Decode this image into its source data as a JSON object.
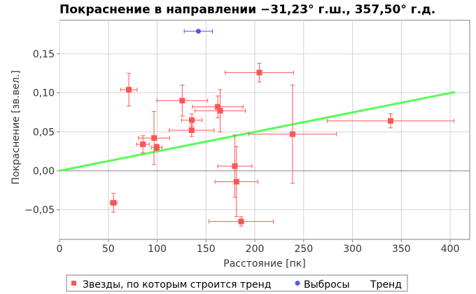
{
  "chart_data": {
    "type": "scatter",
    "title": "Покраснение в направлении −31,23° г.ш., 357,50° г.д.",
    "xlabel": "Расстояние [пк]",
    "ylabel": "Покраснение [зв.вел.]",
    "xlim": [
      0,
      420
    ],
    "ylim": [
      -0.088,
      0.193
    ],
    "x_ticks": [
      {
        "value": 0,
        "label": "0"
      },
      {
        "value": 50,
        "label": "50"
      },
      {
        "value": 100,
        "label": "100"
      },
      {
        "value": 150,
        "label": "150"
      },
      {
        "value": 200,
        "label": "200"
      },
      {
        "value": 250,
        "label": "250"
      },
      {
        "value": 300,
        "label": "300"
      },
      {
        "value": 350,
        "label": "350"
      },
      {
        "value": 400,
        "label": "400"
      }
    ],
    "y_ticks": [
      {
        "value": -0.05,
        "label": "−0,05"
      },
      {
        "value": 0.0,
        "label": "0,00"
      },
      {
        "value": 0.05,
        "label": "0,05"
      },
      {
        "value": 0.1,
        "label": "0,10"
      },
      {
        "value": 0.15,
        "label": "0,15"
      }
    ],
    "grid": true,
    "legend_position": "bottom",
    "colors": {
      "trend_stars": "#ff5555",
      "outliers": "#5555ff",
      "trend_line": "#55ff55",
      "zero_line": "#808080",
      "grid": "#d3d3d3"
    },
    "series": [
      {
        "name": "Звезды, по которым строится тренд",
        "color": "#ff5555",
        "marker": "square",
        "points": [
          {
            "x": 55.3,
            "y": -0.041,
            "xerr": 3.5,
            "yerr": 0.012
          },
          {
            "x": 71.0,
            "y": 0.104,
            "xerr": 8.5,
            "yerr": 0.021
          },
          {
            "x": 85.4,
            "y": 0.034,
            "xerr": 6.5,
            "yerr": 0.011
          },
          {
            "x": 96.8,
            "y": 0.042,
            "xerr": 16.0,
            "yerr": 0.034
          },
          {
            "x": 99.5,
            "y": 0.03,
            "xerr": 5.5,
            "yerr": 0.004
          },
          {
            "x": 125.7,
            "y": 0.09,
            "xerr": 26.0,
            "yerr": 0.02
          },
          {
            "x": 135.5,
            "y": 0.065,
            "xerr": 10.5,
            "yerr": 0.008
          },
          {
            "x": 135.3,
            "y": 0.052,
            "xerr": 23.0,
            "yerr": 0.008
          },
          {
            "x": 162.0,
            "y": 0.082,
            "xerr": 26.0,
            "yerr": 0.014
          },
          {
            "x": 164.5,
            "y": 0.077,
            "xerr": 26.0,
            "yerr": 0.027
          },
          {
            "x": 204.6,
            "y": 0.126,
            "xerr": 35.0,
            "yerr": 0.012
          },
          {
            "x": 179.5,
            "y": 0.006,
            "xerr": 17.5,
            "yerr": 0.04
          },
          {
            "x": 181.2,
            "y": -0.014,
            "xerr": 22.0,
            "yerr": 0.045
          },
          {
            "x": 186.0,
            "y": -0.065,
            "xerr": 33.0,
            "yerr": 0.006
          },
          {
            "x": 238.6,
            "y": 0.047,
            "xerr": 45.0,
            "yerr": 0.063
          },
          {
            "x": 339.0,
            "y": 0.064,
            "xerr": 65.0,
            "yerr": 0.009
          }
        ]
      },
      {
        "name": "Выбросы",
        "color": "#5555ff",
        "marker": "circle",
        "points": [
          {
            "x": 142.2,
            "y": 0.179,
            "xerr": 14.5,
            "yerr": 0.0
          }
        ]
      },
      {
        "name": "Тренд",
        "color": "#55ff55",
        "line": {
          "x": [
            0,
            405
          ],
          "y": [
            0.0,
            0.101
          ]
        }
      }
    ]
  }
}
